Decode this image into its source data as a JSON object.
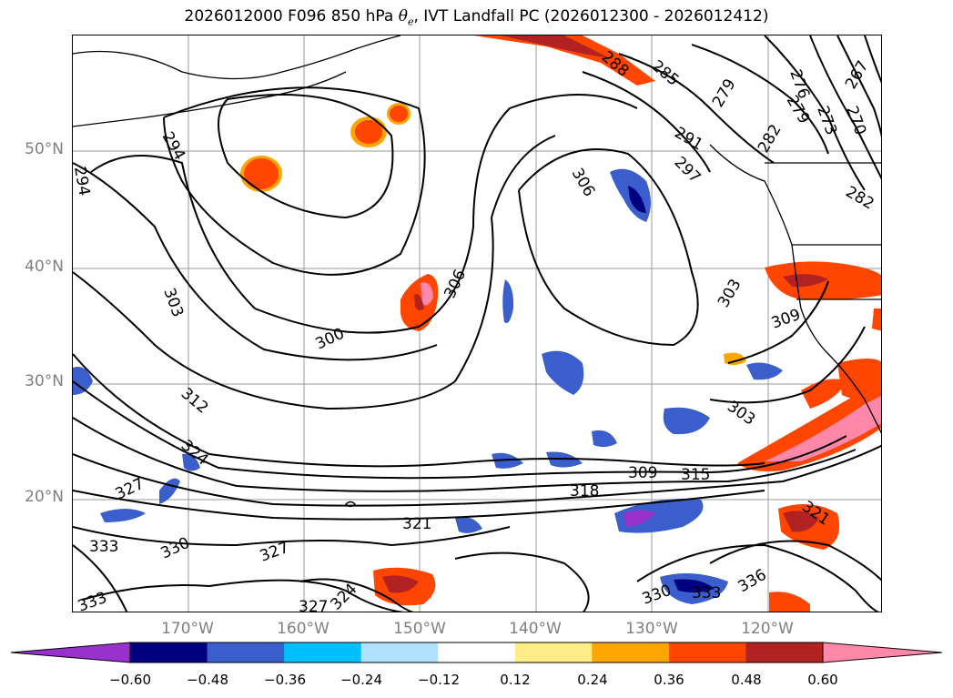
{
  "title": {
    "main": "2026012000 F096 850 hPa",
    "symbol": "θ",
    "subscript": "e",
    "rest": ", IVT Landfall PC (2026012300 - 2026012412)"
  },
  "lat_labels": [
    "50°N",
    "40°N",
    "30°N",
    "20°N"
  ],
  "lon_labels": [
    "170°W",
    "160°W",
    "150°W",
    "140°W",
    "130°W",
    "120°W"
  ],
  "contour_labels": [
    "294",
    "294",
    "303",
    "312",
    "324",
    "327",
    "330",
    "333",
    "333",
    "327",
    "327",
    "324",
    "321",
    "318",
    "309",
    "315",
    "300",
    "306",
    "306",
    "288",
    "285",
    "279",
    "291",
    "297",
    "282",
    "276",
    "279",
    "273",
    "270",
    "267",
    "282",
    "303",
    "309",
    "303",
    "321",
    "336",
    "330",
    "333"
  ],
  "colorbar": {
    "ticks": [
      "−0.60",
      "−0.48",
      "−0.36",
      "−0.24",
      "−0.12",
      "0.12",
      "0.24",
      "0.36",
      "0.48",
      "0.60"
    ],
    "colors": [
      "#9932cc",
      "#000080",
      "#3a5fcd",
      "#00bfff",
      "#b0e2ff",
      "#ffffff",
      "#ffee88",
      "#ffa500",
      "#ff4500",
      "#b22222",
      "#ff88aa"
    ]
  }
}
